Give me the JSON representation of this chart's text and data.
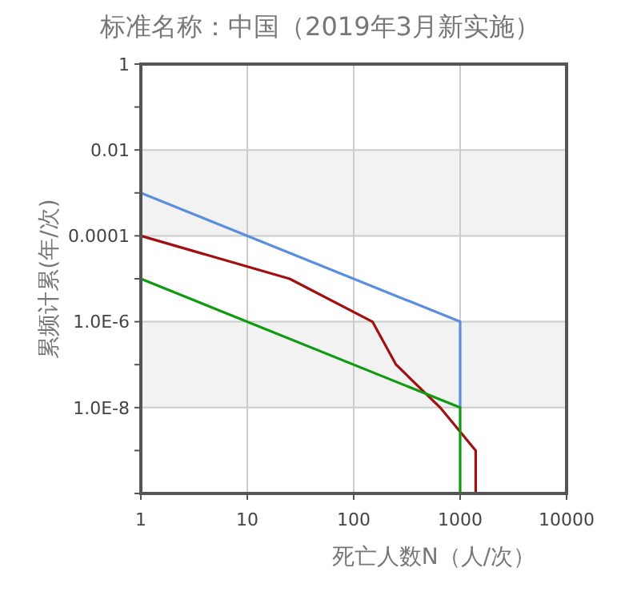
{
  "chart_data": {
    "type": "line",
    "title": "标准名称：中国（2019年3月新实施）",
    "xlabel": "死亡人数N（人/次）",
    "ylabel": "累频计累(年/次)",
    "log": "xy",
    "grid": true,
    "xlim": [
      1,
      10000
    ],
    "xticks": [
      1,
      10,
      100,
      1000,
      10000
    ],
    "ylim": [
      1e-10,
      1
    ],
    "yticks": [
      1,
      {
        "value": 0.1,
        "label": null
      },
      0.01,
      {
        "value": 0.001,
        "label": null
      },
      0.0001,
      {
        "value": 1e-05,
        "label": null
      },
      {
        "value": 1e-06,
        "label": "1.0E-6"
      },
      {
        "value": 1e-07,
        "label": null
      },
      {
        "value": 1e-08,
        "label": "1.0E-8"
      },
      {
        "value": 1e-09,
        "label": null
      },
      {
        "value": 1e-10,
        "label": null
      }
    ],
    "bands": [
      {
        "axis": "y",
        "from": 0.0001,
        "to": 0.01,
        "color": "#f2f2f2"
      },
      {
        "axis": "y",
        "from": 1e-08,
        "to": 1e-06,
        "color": "#f2f2f2"
      }
    ],
    "series": [
      {
        "color": "#5b8fde",
        "x": [
          1,
          1000,
          1000
        ],
        "values": [
          0.001,
          1e-06,
          1e-08
        ]
      },
      {
        "color": "#a01010",
        "x": [
          1,
          25,
          150,
          250,
          650,
          1400,
          1400
        ],
        "values": [
          0.0001,
          1e-05,
          1e-06,
          1e-07,
          1e-08,
          1e-09,
          1e-10
        ]
      },
      {
        "color": "#109a10",
        "x": [
          1,
          1000,
          1000
        ],
        "values": [
          1e-05,
          1e-08,
          1e-10
        ]
      }
    ]
  }
}
